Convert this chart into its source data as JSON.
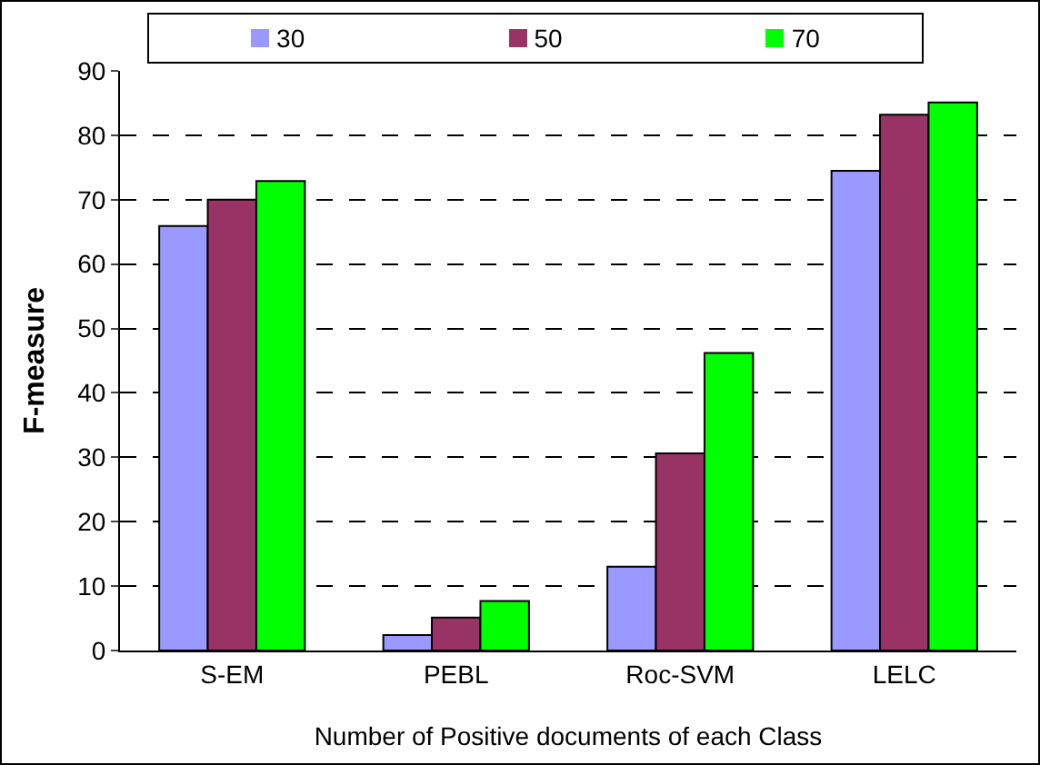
{
  "chart_data": {
    "type": "bar",
    "xlabel": "Number of Positive documents of each Class",
    "ylabel": "F-measure",
    "categories": [
      "S-EM",
      "PEBL",
      "Roc-SVM",
      "LELC"
    ],
    "series": [
      {
        "name": "30",
        "color": "#9999ff",
        "values": [
          65.9,
          2.4,
          13.0,
          74.5
        ]
      },
      {
        "name": "50",
        "color": "#993366",
        "values": [
          70.0,
          5.1,
          30.6,
          83.2
        ]
      },
      {
        "name": "70",
        "color": "#00ff00",
        "values": [
          72.9,
          7.7,
          46.2,
          85.1
        ]
      }
    ],
    "ylim": [
      0,
      90
    ],
    "yticks": [
      0,
      10,
      20,
      30,
      40,
      50,
      60,
      70,
      80,
      90
    ],
    "grid": "y",
    "legend": "top"
  }
}
